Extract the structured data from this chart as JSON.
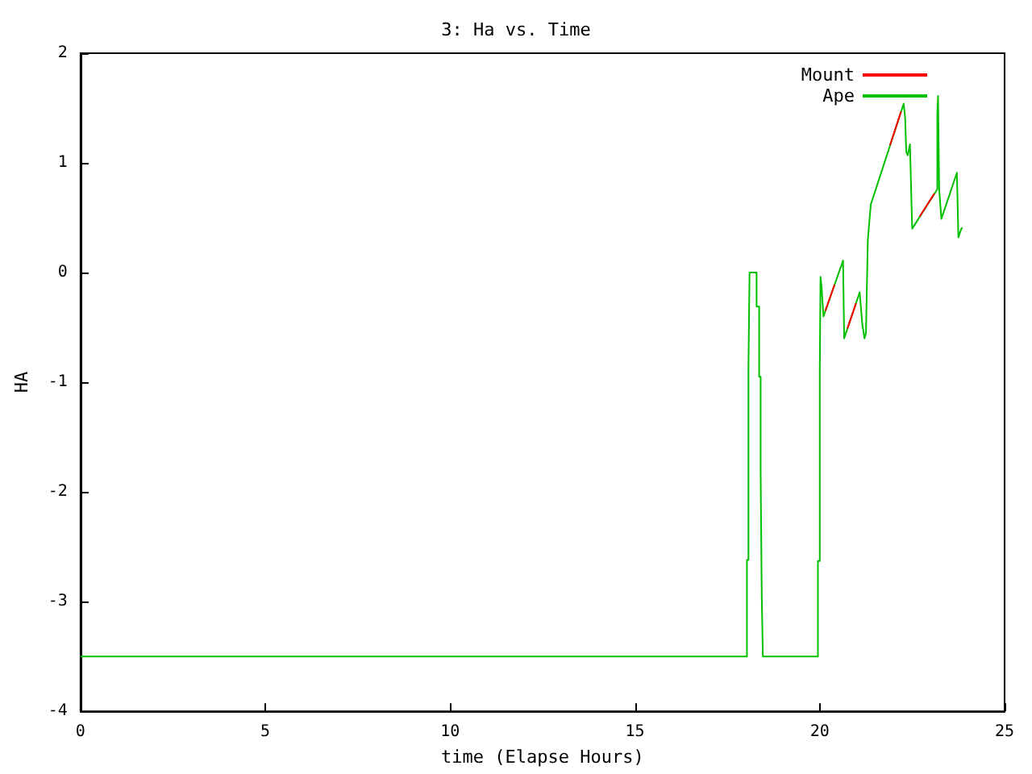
{
  "chart_data": {
    "type": "line",
    "title": "3: Ha vs. Time",
    "xlabel": "time (Elapse Hours)",
    "ylabel": "HA",
    "x": [
      0,
      18.03,
      18.03,
      18.07,
      18.07,
      18.1,
      18.1,
      18.29,
      18.29,
      18.36,
      18.36,
      18.4,
      18.4,
      18.43,
      18.43,
      18.46,
      18.46,
      19.95,
      19.95,
      20.0,
      20.0,
      20.02,
      20.02,
      20.05,
      20.1,
      20.63,
      20.66,
      21.08,
      21.15,
      21.21,
      21.25,
      21.3,
      21.38,
      22.27,
      22.31,
      22.34,
      22.38,
      22.44,
      22.5,
      23.18,
      23.18,
      23.2,
      23.23,
      23.29,
      23.71,
      23.75,
      23.83,
      23.86
    ],
    "series": [
      {
        "name": "Mount",
        "color": "#ff0000",
        "x": [
          20.15,
          20.4,
          20.5,
          20.75,
          20.98,
          21.5,
          21.9,
          22.2,
          22.6,
          22.7,
          23.1
        ],
        "values": [
          -0.35,
          -0.11,
          null,
          -0.51,
          -0.28,
          null,
          1.16,
          1.47,
          null,
          0.51,
          0.72
        ]
      },
      {
        "name": "Ape",
        "color": "#00c000",
        "values": [
          -3.5,
          -3.5,
          -2.62,
          -2.62,
          -0.87,
          -0.87,
          0,
          0,
          -0.31,
          -0.31,
          -0.95,
          -0.95,
          -1.82,
          -1.82,
          -2.94,
          -2.94,
          -3.5,
          -3.5,
          -2.63,
          -2.63,
          -0.9,
          -0.9,
          -0.04,
          -0.14,
          -0.4,
          0.11,
          -0.6,
          -0.18,
          -0.47,
          -0.6,
          -0.55,
          0.3,
          0.62,
          1.54,
          1.41,
          1.1,
          1.07,
          1.17,
          0.4,
          0.76,
          1.44,
          1.61,
          0.76,
          0.49,
          0.91,
          0.32,
          0.4,
          0.41
        ]
      }
    ],
    "xlim": [
      0,
      25
    ],
    "xticks": [
      0,
      5,
      10,
      15,
      20,
      25
    ],
    "ylim": [
      -4,
      2
    ],
    "yticks": [
      -4,
      -3,
      -2,
      -1,
      0,
      1,
      2
    ],
    "grid": false,
    "legend": "top right",
    "marker": "none",
    "line_style": "solid"
  }
}
